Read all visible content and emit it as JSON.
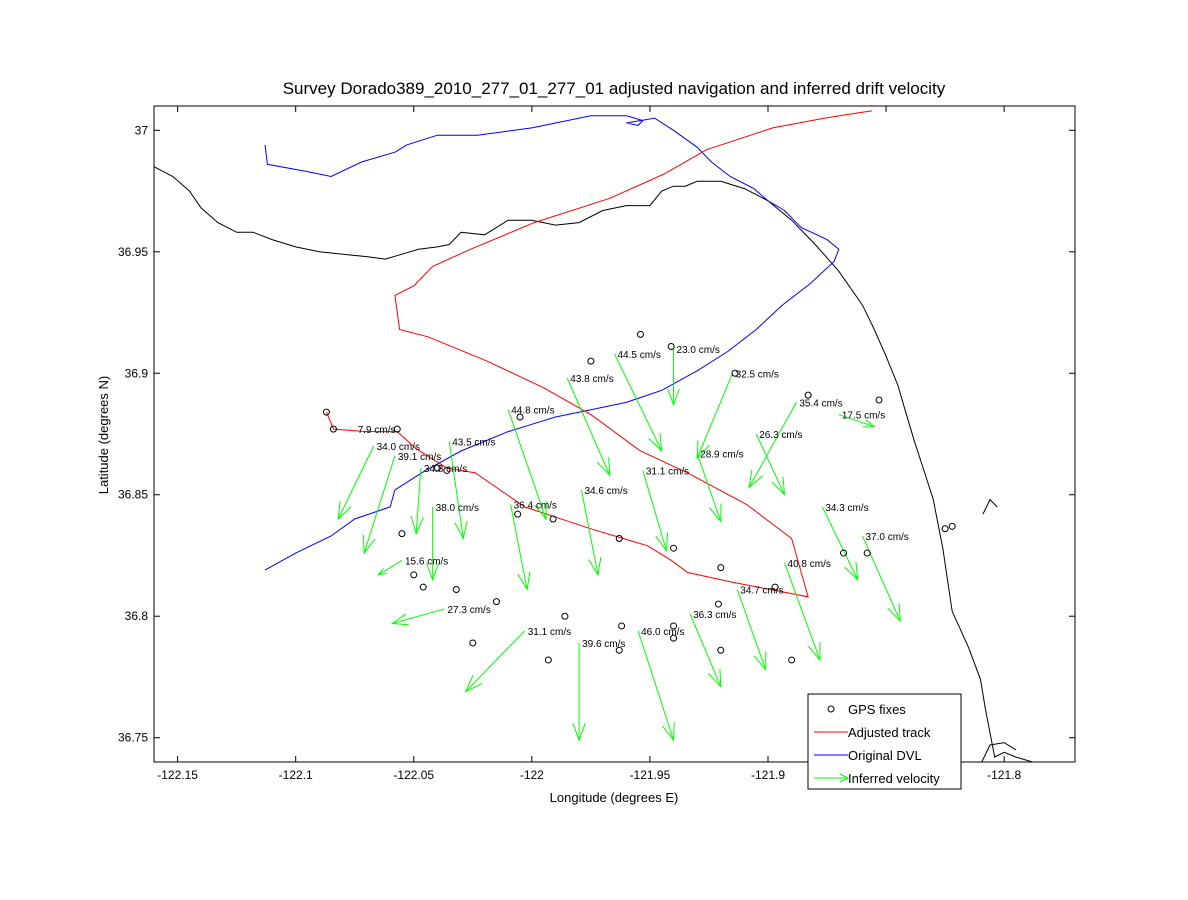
{
  "chart_data": {
    "type": "line",
    "title": "Survey Dorado389_2010_277_01_277_01 adjusted navigation and inferred drift velocity",
    "xlabel": "Longitude (degrees E)",
    "ylabel": "Latitude (degrees N)",
    "xlim": [
      -122.16,
      -121.77
    ],
    "ylim": [
      36.74,
      37.01
    ],
    "xticks": [
      -122.15,
      -122.1,
      -122.05,
      -122.0,
      -121.95,
      -121.9,
      -121.85,
      -121.8
    ],
    "xtick_labels": [
      "-122.15",
      "-122.1",
      "-122.05",
      "-122",
      "-121.95",
      "-121.9",
      "-121.85",
      "-121.8"
    ],
    "yticks": [
      36.75,
      36.8,
      36.85,
      36.9,
      36.95,
      37.0
    ],
    "ytick_labels": [
      "36.75",
      "36.8",
      "36.85",
      "36.9",
      "36.95",
      "37"
    ],
    "grid": false,
    "legend_placement": "bottom-right",
    "legend": [
      {
        "label": "GPS fixes",
        "kind": "marker",
        "color": "#000000"
      },
      {
        "label": "Adjusted track",
        "kind": "line",
        "color": "#ff0000"
      },
      {
        "label": "Original DVL",
        "kind": "line",
        "color": "#0000ff"
      },
      {
        "label": "Inferred velocity",
        "kind": "arrow",
        "color": "#00ff00"
      }
    ],
    "coastline": {
      "color": "#000000",
      "north_x": [
        -122.16,
        -122.152,
        -122.145,
        -122.14,
        -122.133,
        -122.125,
        -122.118,
        -122.11,
        -122.1,
        -122.09,
        -122.08,
        -122.07,
        -122.062,
        -122.055,
        -122.048,
        -122.04,
        -122.035,
        -122.03,
        -122.02,
        -122.01,
        -122.0,
        -121.99,
        -121.98,
        -121.97,
        -121.96,
        -121.95,
        -121.945,
        -121.94,
        -121.935,
        -121.93,
        -121.92,
        -121.91,
        -121.9,
        -121.89,
        -121.88,
        -121.87,
        -121.86,
        -121.855,
        -121.85,
        -121.845,
        -121.842,
        -121.838,
        -121.834,
        -121.83,
        -121.828,
        -121.826,
        -121.824,
        -121.822,
        -121.815,
        -121.81,
        -121.808,
        -121.806,
        -121.804,
        -121.8,
        -121.795,
        -121.788,
        -121.78
      ],
      "north_y": [
        36.985,
        36.981,
        36.975,
        36.968,
        36.962,
        36.958,
        36.958,
        36.955,
        36.952,
        36.95,
        36.949,
        36.948,
        36.947,
        36.949,
        36.951,
        36.952,
        36.953,
        36.958,
        36.957,
        36.963,
        36.963,
        36.961,
        36.962,
        36.967,
        36.969,
        36.969,
        36.975,
        36.977,
        36.977,
        36.979,
        36.979,
        36.976,
        36.971,
        36.963,
        36.953,
        36.942,
        36.928,
        36.918,
        36.907,
        36.895,
        36.885,
        36.872,
        36.86,
        36.848,
        36.838,
        36.828,
        36.815,
        36.802,
        36.787,
        36.774,
        36.762,
        36.752,
        36.742,
        36.744,
        36.742,
        36.74,
        36.737
      ],
      "east_x": [
        -121.809,
        -121.806,
        -121.803
      ],
      "east_y": [
        36.842,
        36.848,
        36.845
      ],
      "south_x": [
        -121.811,
        -121.806,
        -121.8,
        -121.795
      ],
      "south_y": [
        36.737,
        36.747,
        36.748,
        36.745
      ]
    },
    "series": [
      {
        "name": "Original DVL",
        "color": "#0000ff",
        "x": [
          -122.113,
          -122.112,
          -122.095,
          -122.085,
          -122.072,
          -122.058,
          -122.053,
          -122.04,
          -122.023,
          -122.0,
          -121.975,
          -121.96,
          -121.953,
          -121.955,
          -121.96,
          -121.954,
          -121.948,
          -121.94,
          -121.93,
          -121.924,
          -121.916,
          -121.906,
          -121.9,
          -121.893,
          -121.886,
          -121.875,
          -121.87,
          -121.872,
          -121.882,
          -121.894,
          -121.905,
          -121.917,
          -121.93,
          -121.945,
          -121.96,
          -121.975,
          -121.99,
          -122.0,
          -122.01,
          -122.03,
          -122.045,
          -122.058,
          -122.06,
          -122.075,
          -122.085,
          -122.1,
          -122.113
        ],
        "y": [
          36.994,
          36.986,
          36.983,
          36.981,
          36.987,
          36.991,
          36.994,
          36.998,
          36.998,
          37.001,
          37.006,
          37.006,
          37.004,
          37.002,
          37.003,
          37.004,
          37.005,
          37.0,
          36.993,
          36.987,
          36.981,
          36.976,
          36.971,
          36.967,
          36.96,
          36.955,
          36.951,
          36.946,
          36.937,
          36.928,
          36.918,
          36.909,
          36.901,
          36.893,
          36.888,
          36.885,
          36.882,
          36.879,
          36.876,
          36.868,
          36.86,
          36.852,
          36.845,
          36.84,
          36.833,
          36.826,
          36.819
        ]
      },
      {
        "name": "Adjusted track",
        "color": "#ff0000",
        "x": [
          -122.087,
          -122.084,
          -122.07,
          -122.057,
          -122.049,
          -122.036,
          -122.024,
          -122.003,
          -121.975,
          -121.951,
          -121.941,
          -121.934,
          -121.915,
          -121.883,
          -121.89,
          -121.909,
          -121.934,
          -121.954,
          -121.975,
          -121.995,
          -122.019,
          -122.044,
          -122.056,
          -122.058,
          -122.05,
          -122.042,
          -122.026,
          -121.999,
          -121.967,
          -121.944,
          -121.926,
          -121.898,
          -121.876,
          -121.863,
          -121.856
        ],
        "y": [
          36.884,
          36.877,
          36.876,
          36.876,
          36.869,
          36.861,
          36.859,
          36.845,
          36.836,
          36.829,
          36.823,
          36.818,
          36.814,
          36.808,
          36.832,
          36.846,
          36.859,
          36.868,
          36.883,
          36.894,
          36.905,
          36.915,
          36.918,
          36.932,
          36.936,
          36.944,
          36.951,
          36.962,
          36.972,
          36.982,
          36.992,
          37.001,
          37.005,
          37.007,
          37.008
        ]
      }
    ],
    "gps_fixes": {
      "x": [
        -122.087,
        -122.084,
        -122.057,
        -122.04,
        -122.036,
        -122.005,
        -121.975,
        -121.954,
        -121.941,
        -121.914,
        -121.883,
        -121.853,
        -122.006,
        -121.991,
        -121.963,
        -121.94,
        -121.92,
        -121.897,
        -122.05,
        -122.032,
        -122.015,
        -121.986,
        -121.962,
        -121.94,
        -121.92,
        -121.89,
        -121.868,
        -121.858,
        -121.825,
        -121.822,
        -122.055,
        -122.046,
        -122.025,
        -121.993,
        -121.963,
        -121.94,
        -121.921
      ],
      "y": [
        36.884,
        36.877,
        36.877,
        36.861,
        36.86,
        36.882,
        36.905,
        36.916,
        36.911,
        36.9,
        36.891,
        36.889,
        36.842,
        36.84,
        36.832,
        36.828,
        36.82,
        36.812,
        36.817,
        36.811,
        36.806,
        36.8,
        36.796,
        36.791,
        36.786,
        36.782,
        36.826,
        36.826,
        36.836,
        36.837,
        36.834,
        36.812,
        36.789,
        36.782,
        36.786,
        36.796,
        36.805
      ]
    },
    "velocity_vectors": [
      {
        "x": -122.075,
        "y": 36.877,
        "dx": 0.0,
        "dy": 0.0,
        "label": "7.9 cm/s"
      },
      {
        "x": -122.067,
        "y": 36.87,
        "dx": -0.015,
        "dy": -0.03,
        "label": "34.0 cm/s"
      },
      {
        "x": -122.058,
        "y": 36.866,
        "dx": -0.013,
        "dy": -0.04,
        "label": "39.1 cm/s"
      },
      {
        "x": -122.047,
        "y": 36.861,
        "dx": -0.002,
        "dy": -0.027,
        "label": "34.8 cm/s"
      },
      {
        "x": -122.035,
        "y": 36.872,
        "dx": 0.006,
        "dy": -0.04,
        "label": "43.5 cm/s"
      },
      {
        "x": -122.01,
        "y": 36.885,
        "dx": 0.016,
        "dy": -0.045,
        "label": "44.8 cm/s"
      },
      {
        "x": -121.985,
        "y": 36.898,
        "dx": 0.018,
        "dy": -0.04,
        "label": "43.8 cm/s"
      },
      {
        "x": -121.965,
        "y": 36.908,
        "dx": 0.02,
        "dy": -0.04,
        "label": "44.5 cm/s"
      },
      {
        "x": -121.94,
        "y": 36.91,
        "dx": 0.0,
        "dy": -0.023,
        "label": "23.0 cm/s"
      },
      {
        "x": -121.915,
        "y": 36.9,
        "dx": -0.015,
        "dy": -0.035,
        "label": "32.5 cm/s"
      },
      {
        "x": -121.888,
        "y": 36.888,
        "dx": -0.02,
        "dy": -0.035,
        "label": "35.4 cm/s"
      },
      {
        "x": -121.87,
        "y": 36.883,
        "dx": 0.015,
        "dy": -0.005,
        "label": "17.5 cm/s"
      },
      {
        "x": -122.042,
        "y": 36.845,
        "dx": 0.0,
        "dy": -0.03,
        "label": "38.0 cm/s"
      },
      {
        "x": -122.009,
        "y": 36.846,
        "dx": 0.007,
        "dy": -0.035,
        "label": "36.4 cm/s"
      },
      {
        "x": -121.979,
        "y": 36.852,
        "dx": 0.007,
        "dy": -0.035,
        "label": "34.6 cm/s"
      },
      {
        "x": -121.953,
        "y": 36.86,
        "dx": 0.01,
        "dy": -0.033,
        "label": "31.1 cm/s"
      },
      {
        "x": -121.93,
        "y": 36.867,
        "dx": 0.01,
        "dy": -0.028,
        "label": "28.9 cm/s"
      },
      {
        "x": -121.905,
        "y": 36.875,
        "dx": 0.012,
        "dy": -0.025,
        "label": "26.3 cm/s"
      },
      {
        "x": -121.877,
        "y": 36.845,
        "dx": 0.015,
        "dy": -0.03,
        "label": "34.3 cm/s"
      },
      {
        "x": -122.055,
        "y": 36.823,
        "dx": -0.01,
        "dy": -0.006,
        "label": "15.6 cm/s"
      },
      {
        "x": -122.037,
        "y": 36.803,
        "dx": -0.022,
        "dy": -0.006,
        "label": "27.3 cm/s"
      },
      {
        "x": -122.003,
        "y": 36.794,
        "dx": -0.025,
        "dy": -0.025,
        "label": "31.1 cm/s"
      },
      {
        "x": -121.98,
        "y": 36.789,
        "dx": 0.0,
        "dy": -0.04,
        "label": "39.6 cm/s"
      },
      {
        "x": -121.955,
        "y": 36.794,
        "dx": 0.015,
        "dy": -0.045,
        "label": "46.0 cm/s"
      },
      {
        "x": -121.933,
        "y": 36.801,
        "dx": 0.013,
        "dy": -0.03,
        "label": "36.3 cm/s"
      },
      {
        "x": -121.913,
        "y": 36.811,
        "dx": 0.012,
        "dy": -0.033,
        "label": "34.7 cm/s"
      },
      {
        "x": -121.893,
        "y": 36.822,
        "dx": 0.015,
        "dy": -0.04,
        "label": "40.8 cm/s"
      },
      {
        "x": -121.86,
        "y": 36.833,
        "dx": 0.016,
        "dy": -0.035,
        "label": "37.0 cm/s"
      }
    ]
  }
}
